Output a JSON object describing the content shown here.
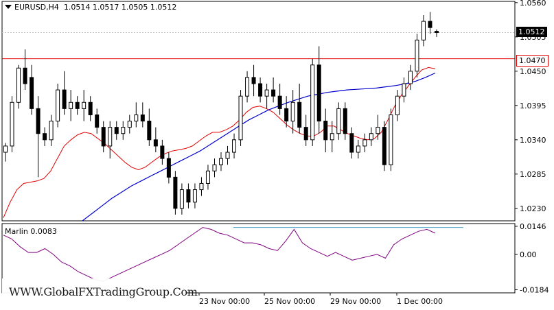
{
  "header": {
    "symbol_timeframe": "EURUSD,H4",
    "open": "1.0514",
    "high": "1.0517",
    "low": "1.0505",
    "close": "1.0512"
  },
  "indicator": {
    "label": "Marlin 0.0083"
  },
  "watermark": "WWW.GlobalFXTradingGroup.Com",
  "current_price_label": "1.0512",
  "level_label": "1.0470",
  "colors": {
    "bull": "#ffffff",
    "bear": "#000000",
    "ma_fast": "#e00000",
    "ma_slow": "#0000cc",
    "level": "#e00000",
    "marlin": "#800080",
    "marlin_ref": "#40a0c0",
    "bg": "#ffffff"
  },
  "chart_data": [
    {
      "type": "candlestick",
      "title": "EURUSD,H4",
      "price_axis_ticks": [
        "1.0560",
        "1.0505",
        "1.0450",
        "1.0395",
        "1.0340",
        "1.0285",
        "1.0230"
      ],
      "ylim": [
        1.021,
        1.0562
      ],
      "time_labels": [
        "23 Nov 00:00",
        "25 Nov 00:00",
        "29 Nov 00:00",
        "1 Dec 00:00"
      ],
      "horizontal_level": 1.047,
      "last_price": 1.0512,
      "candles": [
        [
          1.032,
          1.0335,
          1.0305,
          1.033
        ],
        [
          1.033,
          1.041,
          1.032,
          1.04
        ],
        [
          1.04,
          1.046,
          1.039,
          1.0455
        ],
        [
          1.0455,
          1.0485,
          1.042,
          1.043
        ],
        [
          1.044,
          1.046,
          1.038,
          1.039
        ],
        [
          1.039,
          1.041,
          1.028,
          1.035
        ],
        [
          1.035,
          1.036,
          1.033,
          1.034
        ],
        [
          1.034,
          1.038,
          1.033,
          1.037
        ],
        [
          1.037,
          1.043,
          1.036,
          1.042
        ],
        [
          1.042,
          1.045,
          1.038,
          1.039
        ],
        [
          1.039,
          1.042,
          1.037,
          1.04
        ],
        [
          1.04,
          1.041,
          1.038,
          1.039
        ],
        [
          1.039,
          1.042,
          1.037,
          1.04
        ],
        [
          1.04,
          1.041,
          1.037,
          1.038
        ],
        [
          1.038,
          1.039,
          1.035,
          1.036
        ],
        [
          1.036,
          1.037,
          1.032,
          1.033
        ],
        [
          1.033,
          1.037,
          1.031,
          1.036
        ],
        [
          1.036,
          1.037,
          1.034,
          1.035
        ],
        [
          1.035,
          1.037,
          1.034,
          1.036
        ],
        [
          1.036,
          1.038,
          1.035,
          1.037
        ],
        [
          1.037,
          1.04,
          1.036,
          1.038
        ],
        [
          1.038,
          1.04,
          1.036,
          1.037
        ],
        [
          1.037,
          1.039,
          1.033,
          1.034
        ],
        [
          1.034,
          1.036,
          1.032,
          1.033
        ],
        [
          1.033,
          1.034,
          1.03,
          1.031
        ],
        [
          1.031,
          1.032,
          1.027,
          1.028
        ],
        [
          1.028,
          1.029,
          1.022,
          1.023
        ],
        [
          1.023,
          1.027,
          1.022,
          1.026
        ],
        [
          1.026,
          1.027,
          1.023,
          1.024
        ],
        [
          1.024,
          1.027,
          1.023,
          1.026
        ],
        [
          1.026,
          1.028,
          1.025,
          1.027
        ],
        [
          1.027,
          1.03,
          1.026,
          1.029
        ],
        [
          1.029,
          1.031,
          1.028,
          1.03
        ],
        [
          1.03,
          1.032,
          1.029,
          1.031
        ],
        [
          1.031,
          1.033,
          1.03,
          1.032
        ],
        [
          1.032,
          1.035,
          1.031,
          1.034
        ],
        [
          1.034,
          1.042,
          1.033,
          1.041
        ],
        [
          1.041,
          1.045,
          1.04,
          1.044
        ],
        [
          1.044,
          1.046,
          1.041,
          1.043
        ],
        [
          1.043,
          1.044,
          1.04,
          1.041
        ],
        [
          1.041,
          1.043,
          1.039,
          1.042
        ],
        [
          1.042,
          1.044,
          1.04,
          1.041
        ],
        [
          1.041,
          1.043,
          1.038,
          1.039
        ],
        [
          1.039,
          1.041,
          1.036,
          1.037
        ],
        [
          1.037,
          1.042,
          1.035,
          1.04
        ],
        [
          1.04,
          1.043,
          1.035,
          1.036
        ],
        [
          1.036,
          1.038,
          1.033,
          1.034
        ],
        [
          1.034,
          1.047,
          1.033,
          1.046
        ],
        [
          1.046,
          1.049,
          1.035,
          1.037
        ],
        [
          1.037,
          1.039,
          1.032,
          1.034
        ],
        [
          1.034,
          1.037,
          1.032,
          1.035
        ],
        [
          1.035,
          1.04,
          1.034,
          1.039
        ],
        [
          1.039,
          1.04,
          1.034,
          1.035
        ],
        [
          1.035,
          1.036,
          1.031,
          1.032
        ],
        [
          1.032,
          1.034,
          1.031,
          1.033
        ],
        [
          1.033,
          1.035,
          1.032,
          1.034
        ],
        [
          1.034,
          1.036,
          1.033,
          1.035
        ],
        [
          1.035,
          1.038,
          1.034,
          1.036
        ],
        [
          1.036,
          1.037,
          1.029,
          1.03
        ],
        [
          1.03,
          1.039,
          1.029,
          1.038
        ],
        [
          1.038,
          1.042,
          1.037,
          1.041
        ],
        [
          1.041,
          1.044,
          1.04,
          1.043
        ],
        [
          1.043,
          1.046,
          1.042,
          1.045
        ],
        [
          1.045,
          1.051,
          1.044,
          1.05
        ],
        [
          1.05,
          1.054,
          1.049,
          1.053
        ],
        [
          1.053,
          1.0545,
          1.051,
          1.052
        ],
        [
          1.0514,
          1.0517,
          1.0505,
          1.0512
        ]
      ],
      "ma_fast": [
        1.0215,
        1.024,
        1.026,
        1.027,
        1.0272,
        1.0274,
        1.0278,
        1.029,
        1.031,
        1.033,
        1.034,
        1.0348,
        1.0352,
        1.035,
        1.0342,
        1.0334,
        1.0324,
        1.0314,
        1.0304,
        1.0296,
        1.0292,
        1.0296,
        1.0304,
        1.0312,
        1.0318,
        1.0322,
        1.0324,
        1.0326,
        1.033,
        1.0338,
        1.0346,
        1.0352,
        1.0352,
        1.0356,
        1.0362,
        1.0372,
        1.0384,
        1.0392,
        1.0394,
        1.039,
        1.0384,
        1.0374,
        1.0364,
        1.0356,
        1.035,
        1.0346,
        1.0346,
        1.0352,
        1.0362,
        1.0362,
        1.0356,
        1.035,
        1.0346,
        1.0342,
        1.034,
        1.0342,
        1.0352,
        1.0372,
        1.0394,
        1.0412,
        1.0426,
        1.044,
        1.0452,
        1.0456,
        1.0454
      ],
      "ma_slow": [
        1.021,
        1.0222,
        1.0234,
        1.0246,
        1.0256,
        1.0266,
        1.0274,
        1.0282,
        1.029,
        1.0298,
        1.0306,
        1.0314,
        1.0322,
        1.0332,
        1.0342,
        1.0352,
        1.0362,
        1.0372,
        1.038,
        1.0388,
        1.0394,
        1.04,
        1.0405,
        1.041,
        1.0413,
        1.0416,
        1.0418,
        1.042,
        1.0421,
        1.0422,
        1.0423,
        1.0425,
        1.0427,
        1.043,
        1.0434,
        1.044,
        1.0447
      ],
      "marlin_axis_ticks": [
        "0.0146",
        "0.00",
        "-0.0184"
      ],
      "marlin_ylim": [
        -0.02,
        0.016
      ],
      "marlin": [
        0.01,
        0.008,
        0.004,
        0.001,
        0.001,
        0.003,
        0.0,
        -0.004,
        -0.006,
        -0.009,
        -0.011,
        -0.013,
        -0.014,
        -0.012,
        -0.01,
        -0.008,
        -0.006,
        -0.004,
        -0.002,
        0.0,
        0.002,
        0.005,
        0.008,
        0.011,
        0.014,
        0.013,
        0.011,
        0.01,
        0.008,
        0.006,
        0.006,
        0.005,
        0.003,
        0.002,
        0.007,
        0.013,
        0.006,
        0.003,
        0.001,
        -0.001,
        0.001,
        -0.001,
        -0.003,
        -0.002,
        -0.001,
        0.0,
        -0.002,
        0.005,
        0.008,
        0.01,
        0.012,
        0.013,
        0.011
      ]
    }
  ]
}
